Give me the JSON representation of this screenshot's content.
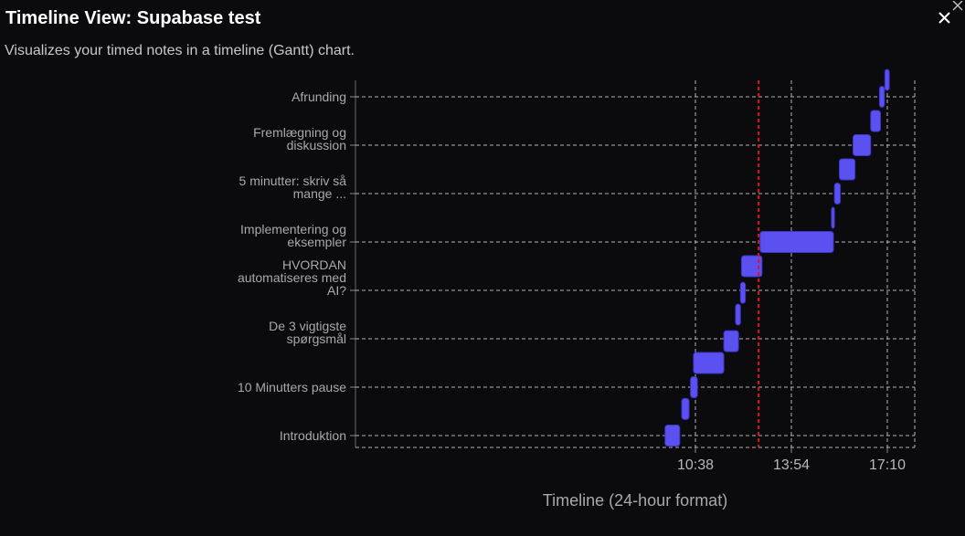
{
  "header": {
    "title": "Timeline View: Supabase test",
    "subtitle": "Visualizes your timed notes in a timeline (Gantt) chart."
  },
  "icons": {
    "close": "close-icon",
    "corner_close": "close-icon"
  },
  "colors": {
    "background": "#0b0a0d",
    "bar": "#5b50f0",
    "now_line": "#e0141e",
    "grid": "#b4b4b4"
  },
  "chart_data": {
    "type": "gantt",
    "xlabel": "Timeline (24-hour format)",
    "x_ticks": [
      "10:38",
      "13:54",
      "17:10"
    ],
    "categories": [
      "Introduktion",
      "10 Minutters pause",
      "De 3 vigtigste spørgsmål",
      "HVORDAN automatiseres med AI?",
      "Implementering og eksempler",
      "5 minutter: skriv så mange ...",
      "Fremlægning og diskussion",
      "Afrunding"
    ],
    "category_labels": [
      [
        "Introduktion"
      ],
      [
        "10 Minutters pause"
      ],
      [
        "De 3 vigtigste",
        "spørgsmål"
      ],
      [
        "HVORDAN",
        "automatiseres med",
        "AI?"
      ],
      [
        "Implementering og",
        "eksempler"
      ],
      [
        "5 minutter: skriv så",
        "mange ..."
      ],
      [
        "Fremlægning og",
        "diskussion"
      ],
      [
        "Afrunding"
      ]
    ],
    "x_range": [
      "00:00",
      "17:49"
    ],
    "now_marker": "12:47",
    "grid": true,
    "tasks": [
      {
        "start": "09:36",
        "end": "10:06",
        "row": 0
      },
      {
        "start": "10:10",
        "end": "10:25",
        "row": 0.55
      },
      {
        "start": "10:28",
        "end": "10:42",
        "row": 1
      },
      {
        "start": "10:34",
        "end": "11:36",
        "row": 1.5
      },
      {
        "start": "11:36",
        "end": "12:06",
        "row": 1.95
      },
      {
        "start": "12:00",
        "end": "12:10",
        "row": 2.5
      },
      {
        "start": "12:10",
        "end": "12:20",
        "row": 2.95
      },
      {
        "start": "12:12",
        "end": "12:54",
        "row": 3.5
      },
      {
        "start": "12:50",
        "end": "15:20",
        "row": 4
      },
      {
        "start": "15:16",
        "end": "15:22",
        "row": 4.5
      },
      {
        "start": "15:22",
        "end": "15:34",
        "row": 5
      },
      {
        "start": "15:32",
        "end": "16:04",
        "row": 5.5
      },
      {
        "start": "16:00",
        "end": "16:36",
        "row": 6
      },
      {
        "start": "16:36",
        "end": "16:56",
        "row": 6.5
      },
      {
        "start": "16:54",
        "end": "17:04",
        "row": 7
      },
      {
        "start": "17:05",
        "end": "17:14",
        "row": 7.35
      }
    ]
  }
}
